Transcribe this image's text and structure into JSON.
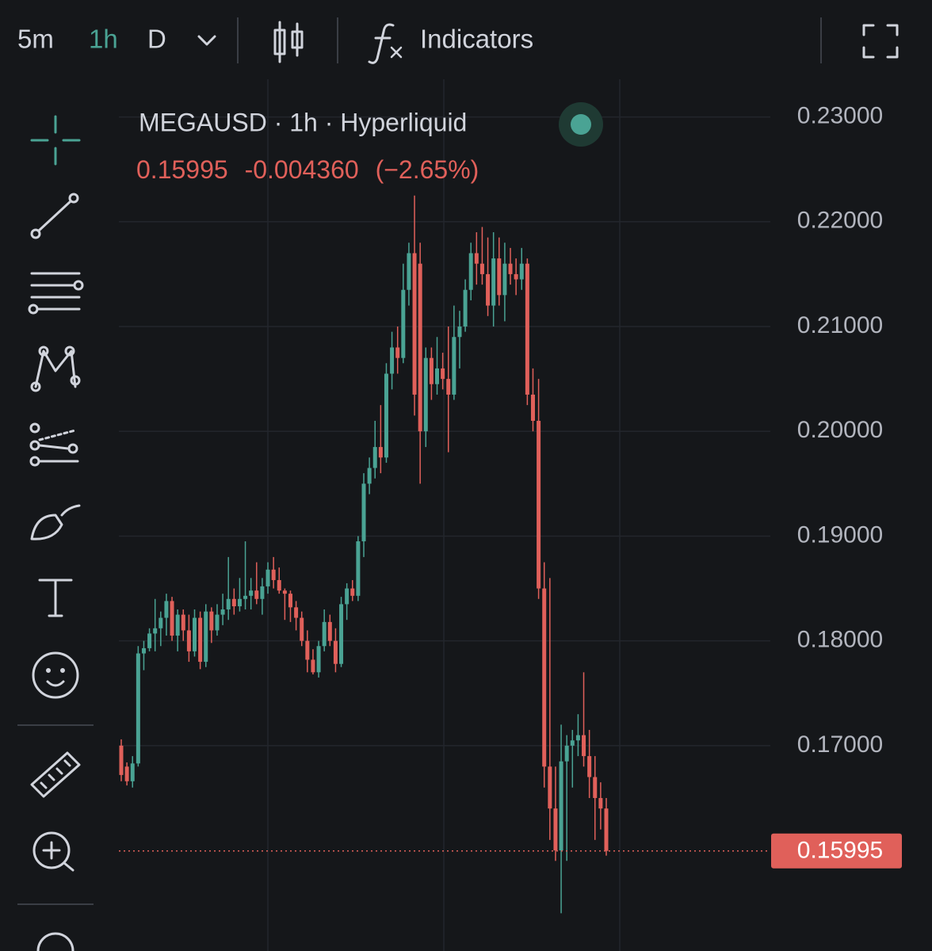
{
  "toolbar": {
    "intervals": [
      "5m",
      "1h",
      "D"
    ],
    "active_interval": "1h",
    "indicators": "Indicators"
  },
  "chart_data": {
    "type": "candlestick",
    "title": "MEGAUSD · 1h · Hyperliquid",
    "change": "-0.004360",
    "change_percent": "(−2.65%)",
    "up_color": "#4aa394",
    "down_color": "#e0605a",
    "ylim": [
      0.1504,
      0.2336
    ],
    "yticks": [
      {
        "value": 0.23,
        "label": "0.23000"
      },
      {
        "value": 0.22,
        "label": "0.22000"
      },
      {
        "value": 0.21,
        "label": "0.21000"
      },
      {
        "value": 0.2,
        "label": "0.20000"
      },
      {
        "value": 0.19,
        "label": "0.19000"
      },
      {
        "value": 0.18,
        "label": "0.18000"
      },
      {
        "value": 0.17,
        "label": "0.17000"
      }
    ],
    "grid": true,
    "open": [
      0.17,
      0.168,
      0.1666,
      0.1683,
      0.1788,
      0.1793,
      0.1807,
      0.1812,
      0.1822,
      0.1838,
      0.1805,
      0.1825,
      0.181,
      0.179,
      0.1822,
      0.178,
      0.1828,
      0.181,
      0.1825,
      0.183,
      0.184,
      0.1833,
      0.184,
      0.1843,
      0.1848,
      0.184,
      0.1852,
      0.1868,
      0.1858,
      0.1848,
      0.1845,
      0.1832,
      0.1822,
      0.18,
      0.1782,
      0.177,
      0.1795,
      0.1818,
      0.18,
      0.1778,
      0.1835,
      0.185,
      0.1843,
      0.1895,
      0.195,
      0.1965,
      0.1985,
      0.1975,
      0.2055,
      0.208,
      0.207,
      0.2135,
      0.217,
      0.216,
      0.2,
      0.207,
      0.2045,
      0.206,
      0.205,
      0.2035,
      0.209,
      0.21,
      0.2135,
      0.217,
      0.216,
      0.215,
      0.212,
      0.2165,
      0.213,
      0.216,
      0.215,
      0.2145,
      0.216,
      0.2035,
      0.201,
      0.185,
      0.168,
      0.164,
      0.16,
      0.1685,
      0.17,
      0.1705,
      0.171,
      0.169,
      0.167,
      0.165,
      0.164
    ],
    "high": [
      0.1706,
      0.1684,
      0.169,
      0.1795,
      0.18,
      0.1812,
      0.184,
      0.1828,
      0.1845,
      0.1842,
      0.183,
      0.183,
      0.1825,
      0.183,
      0.1828,
      0.1835,
      0.1832,
      0.1835,
      0.1845,
      0.188,
      0.185,
      0.186,
      0.1895,
      0.186,
      0.1875,
      0.186,
      0.1875,
      0.188,
      0.187,
      0.185,
      0.1848,
      0.1838,
      0.1828,
      0.181,
      0.1792,
      0.18,
      0.183,
      0.1825,
      0.1812,
      0.1842,
      0.1855,
      0.1858,
      0.19,
      0.196,
      0.1975,
      0.201,
      0.2025,
      0.2065,
      0.2095,
      0.21,
      0.216,
      0.218,
      0.2225,
      0.218,
      0.208,
      0.208,
      0.209,
      0.2075,
      0.21,
      0.212,
      0.2115,
      0.2145,
      0.218,
      0.219,
      0.2195,
      0.2185,
      0.219,
      0.2185,
      0.218,
      0.2175,
      0.2165,
      0.2175,
      0.2165,
      0.206,
      0.205,
      0.1875,
      0.186,
      0.168,
      0.172,
      0.171,
      0.1715,
      0.173,
      0.177,
      0.1715,
      0.169,
      0.1665,
      0.165
    ],
    "low": [
      0.1666,
      0.1662,
      0.166,
      0.168,
      0.1772,
      0.179,
      0.179,
      0.1795,
      0.1805,
      0.18,
      0.179,
      0.18,
      0.178,
      0.1785,
      0.1773,
      0.1775,
      0.1798,
      0.1805,
      0.1815,
      0.182,
      0.1825,
      0.1828,
      0.183,
      0.183,
      0.1835,
      0.1825,
      0.1845,
      0.185,
      0.1845,
      0.182,
      0.1818,
      0.181,
      0.1795,
      0.177,
      0.1768,
      0.1765,
      0.179,
      0.1795,
      0.177,
      0.1775,
      0.182,
      0.1838,
      0.1838,
      0.188,
      0.194,
      0.1955,
      0.196,
      0.197,
      0.204,
      0.2055,
      0.2065,
      0.212,
      0.2015,
      0.195,
      0.1985,
      0.203,
      0.2035,
      0.204,
      0.198,
      0.203,
      0.206,
      0.2095,
      0.2125,
      0.214,
      0.214,
      0.211,
      0.21,
      0.212,
      0.2105,
      0.214,
      0.213,
      0.2135,
      0.2025,
      0.2,
      0.184,
      0.166,
      0.161,
      0.159,
      0.154,
      0.159,
      0.166,
      0.169,
      0.168,
      0.165,
      0.161,
      0.162,
      0.1595
    ],
    "close": [
      0.1672,
      0.1666,
      0.1683,
      0.1788,
      0.1793,
      0.1807,
      0.1812,
      0.1822,
      0.1838,
      0.1805,
      0.1825,
      0.181,
      0.179,
      0.1822,
      0.178,
      0.1828,
      0.181,
      0.1825,
      0.183,
      0.184,
      0.1833,
      0.184,
      0.1843,
      0.1848,
      0.184,
      0.1852,
      0.1868,
      0.1858,
      0.1848,
      0.1845,
      0.1832,
      0.1822,
      0.18,
      0.1782,
      0.177,
      0.1795,
      0.1818,
      0.18,
      0.1778,
      0.1835,
      0.185,
      0.1843,
      0.1895,
      0.195,
      0.1965,
      0.1985,
      0.1975,
      0.2055,
      0.208,
      0.207,
      0.2135,
      0.217,
      0.2035,
      0.2,
      0.207,
      0.2045,
      0.206,
      0.205,
      0.2035,
      0.209,
      0.21,
      0.2135,
      0.217,
      0.216,
      0.215,
      0.212,
      0.2165,
      0.213,
      0.216,
      0.215,
      0.2145,
      0.216,
      0.2035,
      0.201,
      0.185,
      0.168,
      0.164,
      0.16,
      0.1685,
      0.17,
      0.1705,
      0.171,
      0.169,
      0.167,
      0.165,
      0.164,
      0.15995
    ]
  }
}
